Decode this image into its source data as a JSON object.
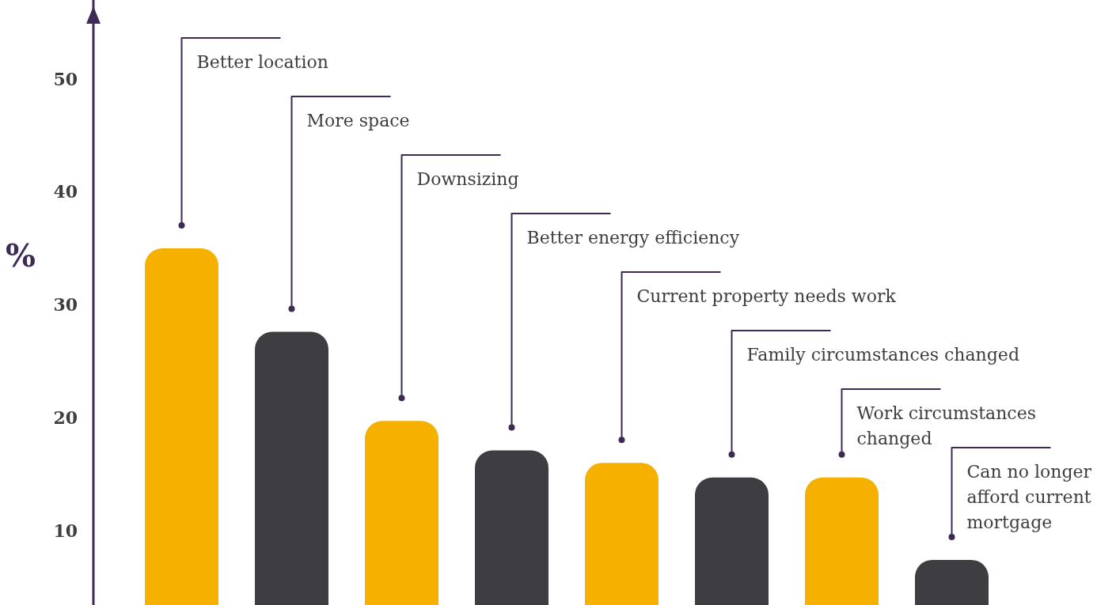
{
  "chart_data": {
    "type": "bar",
    "ylabel": "%",
    "categories": [
      null,
      null,
      null,
      null,
      null,
      null,
      null,
      null
    ],
    "annotations": [
      "Better location",
      "More space",
      "Downsizing",
      "Better energy efficiency",
      "Current property needs work",
      "Family circumstances changed",
      "Work circumstances changed",
      "Can no longer afford current mortgage"
    ],
    "values": [
      35,
      27.6,
      19.7,
      17.1,
      16,
      14.7,
      14.7,
      7.4
    ],
    "colors": [
      "#f5b000",
      "#3d3d42",
      "#f5b000",
      "#3d3d42",
      "#f5b000",
      "#3d3d42",
      "#f5b000",
      "#3d3d42"
    ],
    "ylim": [
      3.4,
      57
    ],
    "yticks": [
      10,
      20,
      30,
      40,
      50
    ],
    "grid": false,
    "legend": false
  }
}
